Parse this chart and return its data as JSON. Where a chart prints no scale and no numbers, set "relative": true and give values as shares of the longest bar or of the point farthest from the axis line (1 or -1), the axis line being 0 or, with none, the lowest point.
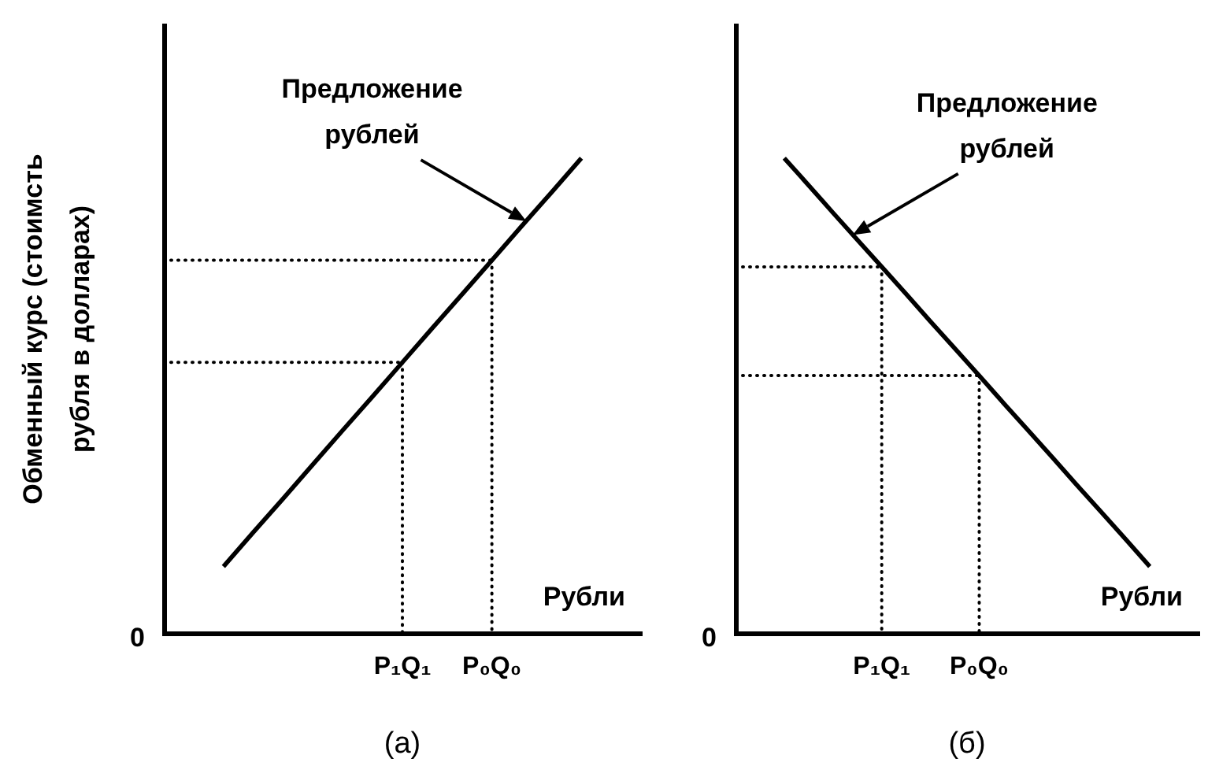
{
  "chart_data": [
    {
      "type": "line",
      "title": "(а)",
      "xlabel": "Рубли",
      "ylabel": "Обменный курс (стоимсть\nрубля в долларах)",
      "relative": true,
      "categories": [
        null,
        null,
        null,
        null,
        null,
        null,
        null,
        null,
        "P₁Q₁",
        null,
        null,
        "P₀Q₀",
        null,
        null,
        null,
        null,
        null
      ],
      "series": [
        {
          "color": "#000000",
          "line_style": "solid",
          "values": [
            null,
            null,
            0.14,
            0.212,
            0.283,
            0.355,
            0.427,
            0.498,
            0.57,
            0.642,
            0.713,
            0.785,
            0.857,
            0.928,
            1,
            null,
            null
          ]
        },
        {
          "color": "#000000",
          "line_style": "dotted",
          "values": [
            0.57,
            0.57,
            0.57,
            0.57,
            0.57,
            0.57,
            0.57,
            0.57,
            0.57,
            null,
            null,
            null,
            null,
            null,
            null,
            null,
            null
          ]
        },
        {
          "color": "#000000",
          "line_style": "dotted",
          "x": [
            "P₁Q₁",
            "P₁Q₁"
          ],
          "values": [
            0.57,
            0
          ]
        },
        {
          "color": "#000000",
          "line_style": "dotted",
          "values": [
            0.785,
            0.785,
            0.785,
            0.785,
            0.785,
            0.785,
            0.785,
            0.785,
            0.785,
            0.785,
            0.785,
            0.785,
            null,
            null,
            null,
            null,
            null
          ]
        },
        {
          "color": "#000000",
          "line_style": "dotted",
          "x": [
            "P₀Q₀",
            "P₀Q₀"
          ],
          "values": [
            0.785,
            0
          ]
        }
      ],
      "annotations": [
        "Предложение\nрублей",
        "0"
      ]
    },
    {
      "type": "line",
      "title": "(б)",
      "xlabel": "Рубли",
      "relative": true,
      "categories": [
        null,
        null,
        null,
        null,
        null,
        null,
        "P₁Q₁",
        null,
        null,
        null,
        "P₀Q₀",
        null,
        null,
        null,
        null,
        null,
        null,
        null,
        null,
        null
      ],
      "series": [
        {
          "color": "#000000",
          "line_style": "solid",
          "values": [
            null,
            null,
            1,
            0.943,
            0.885,
            0.828,
            0.771,
            0.714,
            0.656,
            0.599,
            0.542,
            0.484,
            0.427,
            0.37,
            0.312,
            0.255,
            0.198,
            0.14,
            null,
            null
          ]
        },
        {
          "color": "#000000",
          "line_style": "dotted",
          "values": [
            0.771,
            0.771,
            0.771,
            0.771,
            0.771,
            0.771,
            0.771,
            null,
            null,
            null,
            null,
            null,
            null,
            null,
            null,
            null,
            null,
            null,
            null,
            null
          ]
        },
        {
          "color": "#000000",
          "line_style": "dotted",
          "x": [
            "P₁Q₁",
            "P₁Q₁"
          ],
          "values": [
            0.771,
            0
          ]
        },
        {
          "color": "#000000",
          "line_style": "dotted",
          "values": [
            0.542,
            0.542,
            0.542,
            0.542,
            0.542,
            0.542,
            0.542,
            0.542,
            0.542,
            0.542,
            0.542,
            null,
            null,
            null,
            null,
            null,
            null,
            null,
            null,
            null
          ]
        },
        {
          "color": "#000000",
          "line_style": "dotted",
          "x": [
            "P₀Q₀",
            "P₀Q₀"
          ],
          "values": [
            0.542,
            0
          ]
        }
      ],
      "annotations": [
        "Предложение\nрублей",
        "0"
      ]
    }
  ]
}
